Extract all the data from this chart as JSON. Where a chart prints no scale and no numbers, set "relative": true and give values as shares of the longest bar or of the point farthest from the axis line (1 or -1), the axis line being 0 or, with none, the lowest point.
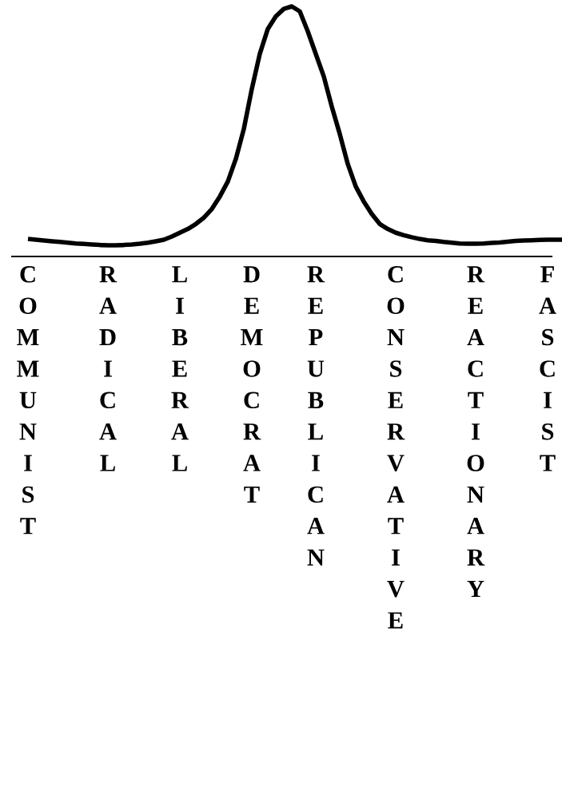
{
  "chart_data": {
    "type": "line",
    "relative": true,
    "categories": [
      "COMMUNIST",
      null,
      null,
      null,
      null,
      null,
      null,
      null,
      null,
      null,
      "RADICAL",
      null,
      null,
      null,
      null,
      null,
      null,
      null,
      null,
      "LIBERAL",
      null,
      null,
      null,
      null,
      null,
      null,
      null,
      null,
      "DEMOCRAT",
      null,
      null,
      null,
      null,
      null,
      null,
      null,
      "REPUBLICAN",
      null,
      null,
      null,
      null,
      null,
      null,
      null,
      null,
      null,
      "CONSERVATIVE",
      null,
      null,
      null,
      null,
      null,
      null,
      null,
      null,
      null,
      "REACTIONARY",
      null,
      null,
      null,
      null,
      null,
      null,
      null,
      null,
      "FASCIST",
      null,
      null
    ],
    "series": [
      {
        "color": "#000000",
        "values": [
          0.07,
          0.067,
          0.064,
          0.061,
          0.058,
          0.055,
          0.052,
          0.05,
          0.048,
          0.046,
          0.045,
          0.045,
          0.046,
          0.048,
          0.051,
          0.055,
          0.061,
          0.067,
          0.08,
          0.095,
          0.11,
          0.13,
          0.155,
          0.19,
          0.24,
          0.3,
          0.39,
          0.51,
          0.67,
          0.81,
          0.91,
          0.96,
          0.99,
          1.0,
          0.98,
          0.9,
          0.81,
          0.72,
          0.6,
          0.49,
          0.37,
          0.28,
          0.22,
          0.17,
          0.13,
          0.11,
          0.095,
          0.085,
          0.077,
          0.07,
          0.065,
          0.062,
          0.058,
          0.055,
          0.052,
          0.051,
          0.051,
          0.052,
          0.054,
          0.056,
          0.059,
          0.062,
          0.064,
          0.065,
          0.066,
          0.067,
          0.067,
          0.067
        ]
      }
    ]
  }
}
